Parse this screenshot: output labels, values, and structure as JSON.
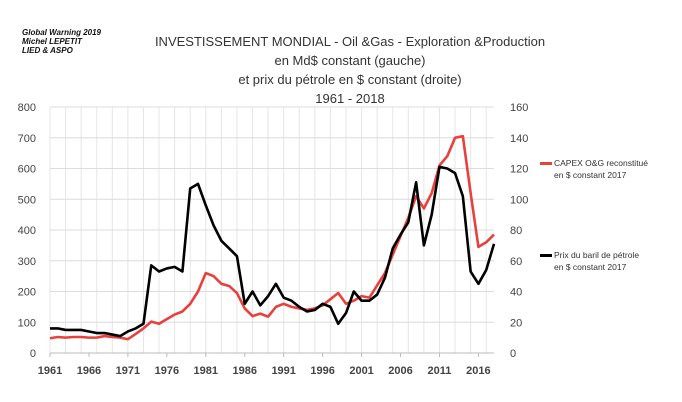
{
  "credit": [
    "Global Warning 2019",
    "Michel LEPETIT",
    "LIED & ASPO"
  ],
  "chart_data": {
    "type": "line",
    "title": [
      "INVESTISSEMENT  MONDIAL - Oil &Gas - Exploration &Production",
      "en Md$ constant (gauche)",
      "et prix du pétrole en $ constant (droite)",
      "1961 - 2018"
    ],
    "x": [
      1961,
      1962,
      1963,
      1964,
      1965,
      1966,
      1967,
      1968,
      1969,
      1970,
      1971,
      1972,
      1973,
      1974,
      1975,
      1976,
      1977,
      1978,
      1979,
      1980,
      1981,
      1982,
      1983,
      1984,
      1985,
      1986,
      1987,
      1988,
      1989,
      1990,
      1991,
      1992,
      1993,
      1994,
      1995,
      1996,
      1997,
      1998,
      1999,
      2000,
      2001,
      2002,
      2003,
      2004,
      2005,
      2006,
      2007,
      2008,
      2009,
      2010,
      2011,
      2012,
      2013,
      2014,
      2015,
      2016,
      2017,
      2018
    ],
    "xticks": [
      "1961",
      "1966",
      "1971",
      "1976",
      "1981",
      "1986",
      "1991",
      "1996",
      "2001",
      "2006",
      "2011",
      "2016"
    ],
    "xlim": [
      1961,
      2018
    ],
    "ylim_left": [
      0,
      800
    ],
    "ylim_right": [
      0,
      160
    ],
    "yticks_left": [
      "0",
      "100",
      "200",
      "300",
      "400",
      "500",
      "600",
      "700",
      "800"
    ],
    "yticks_right": [
      "0",
      "20",
      "40",
      "60",
      "80",
      "100",
      "120",
      "140",
      "160"
    ],
    "grid": true,
    "legend_position": "right",
    "series": [
      {
        "name": "CAPEX O&G reconstitué",
        "name2": "en $ constant 2017",
        "axis": "left",
        "color": "#e8403c",
        "values": [
          48,
          52,
          50,
          52,
          52,
          50,
          50,
          55,
          52,
          50,
          45,
          62,
          80,
          102,
          95,
          110,
          125,
          135,
          160,
          200,
          260,
          250,
          225,
          218,
          195,
          145,
          120,
          128,
          118,
          150,
          160,
          150,
          145,
          140,
          145,
          155,
          175,
          195,
          160,
          170,
          185,
          180,
          220,
          260,
          320,
          380,
          440,
          510,
          470,
          520,
          610,
          640,
          700,
          705,
          520,
          345,
          360,
          385
        ]
      },
      {
        "name": "Prix du baril de pétrole",
        "name2": "en $ constant 2017",
        "axis": "right",
        "color": "#000000",
        "values": [
          16,
          16,
          15,
          15,
          15,
          14,
          13,
          13,
          12,
          11,
          14,
          16,
          19,
          57,
          53,
          55,
          56,
          53,
          107,
          110,
          96,
          83,
          73,
          68,
          63,
          32,
          40,
          31,
          37,
          45,
          36,
          34,
          30,
          27,
          28,
          32,
          30,
          19,
          26,
          40,
          34,
          34,
          38,
          49,
          68,
          77,
          85,
          111,
          70,
          90,
          121,
          120,
          117,
          102,
          53,
          45,
          54,
          71
        ]
      }
    ]
  }
}
